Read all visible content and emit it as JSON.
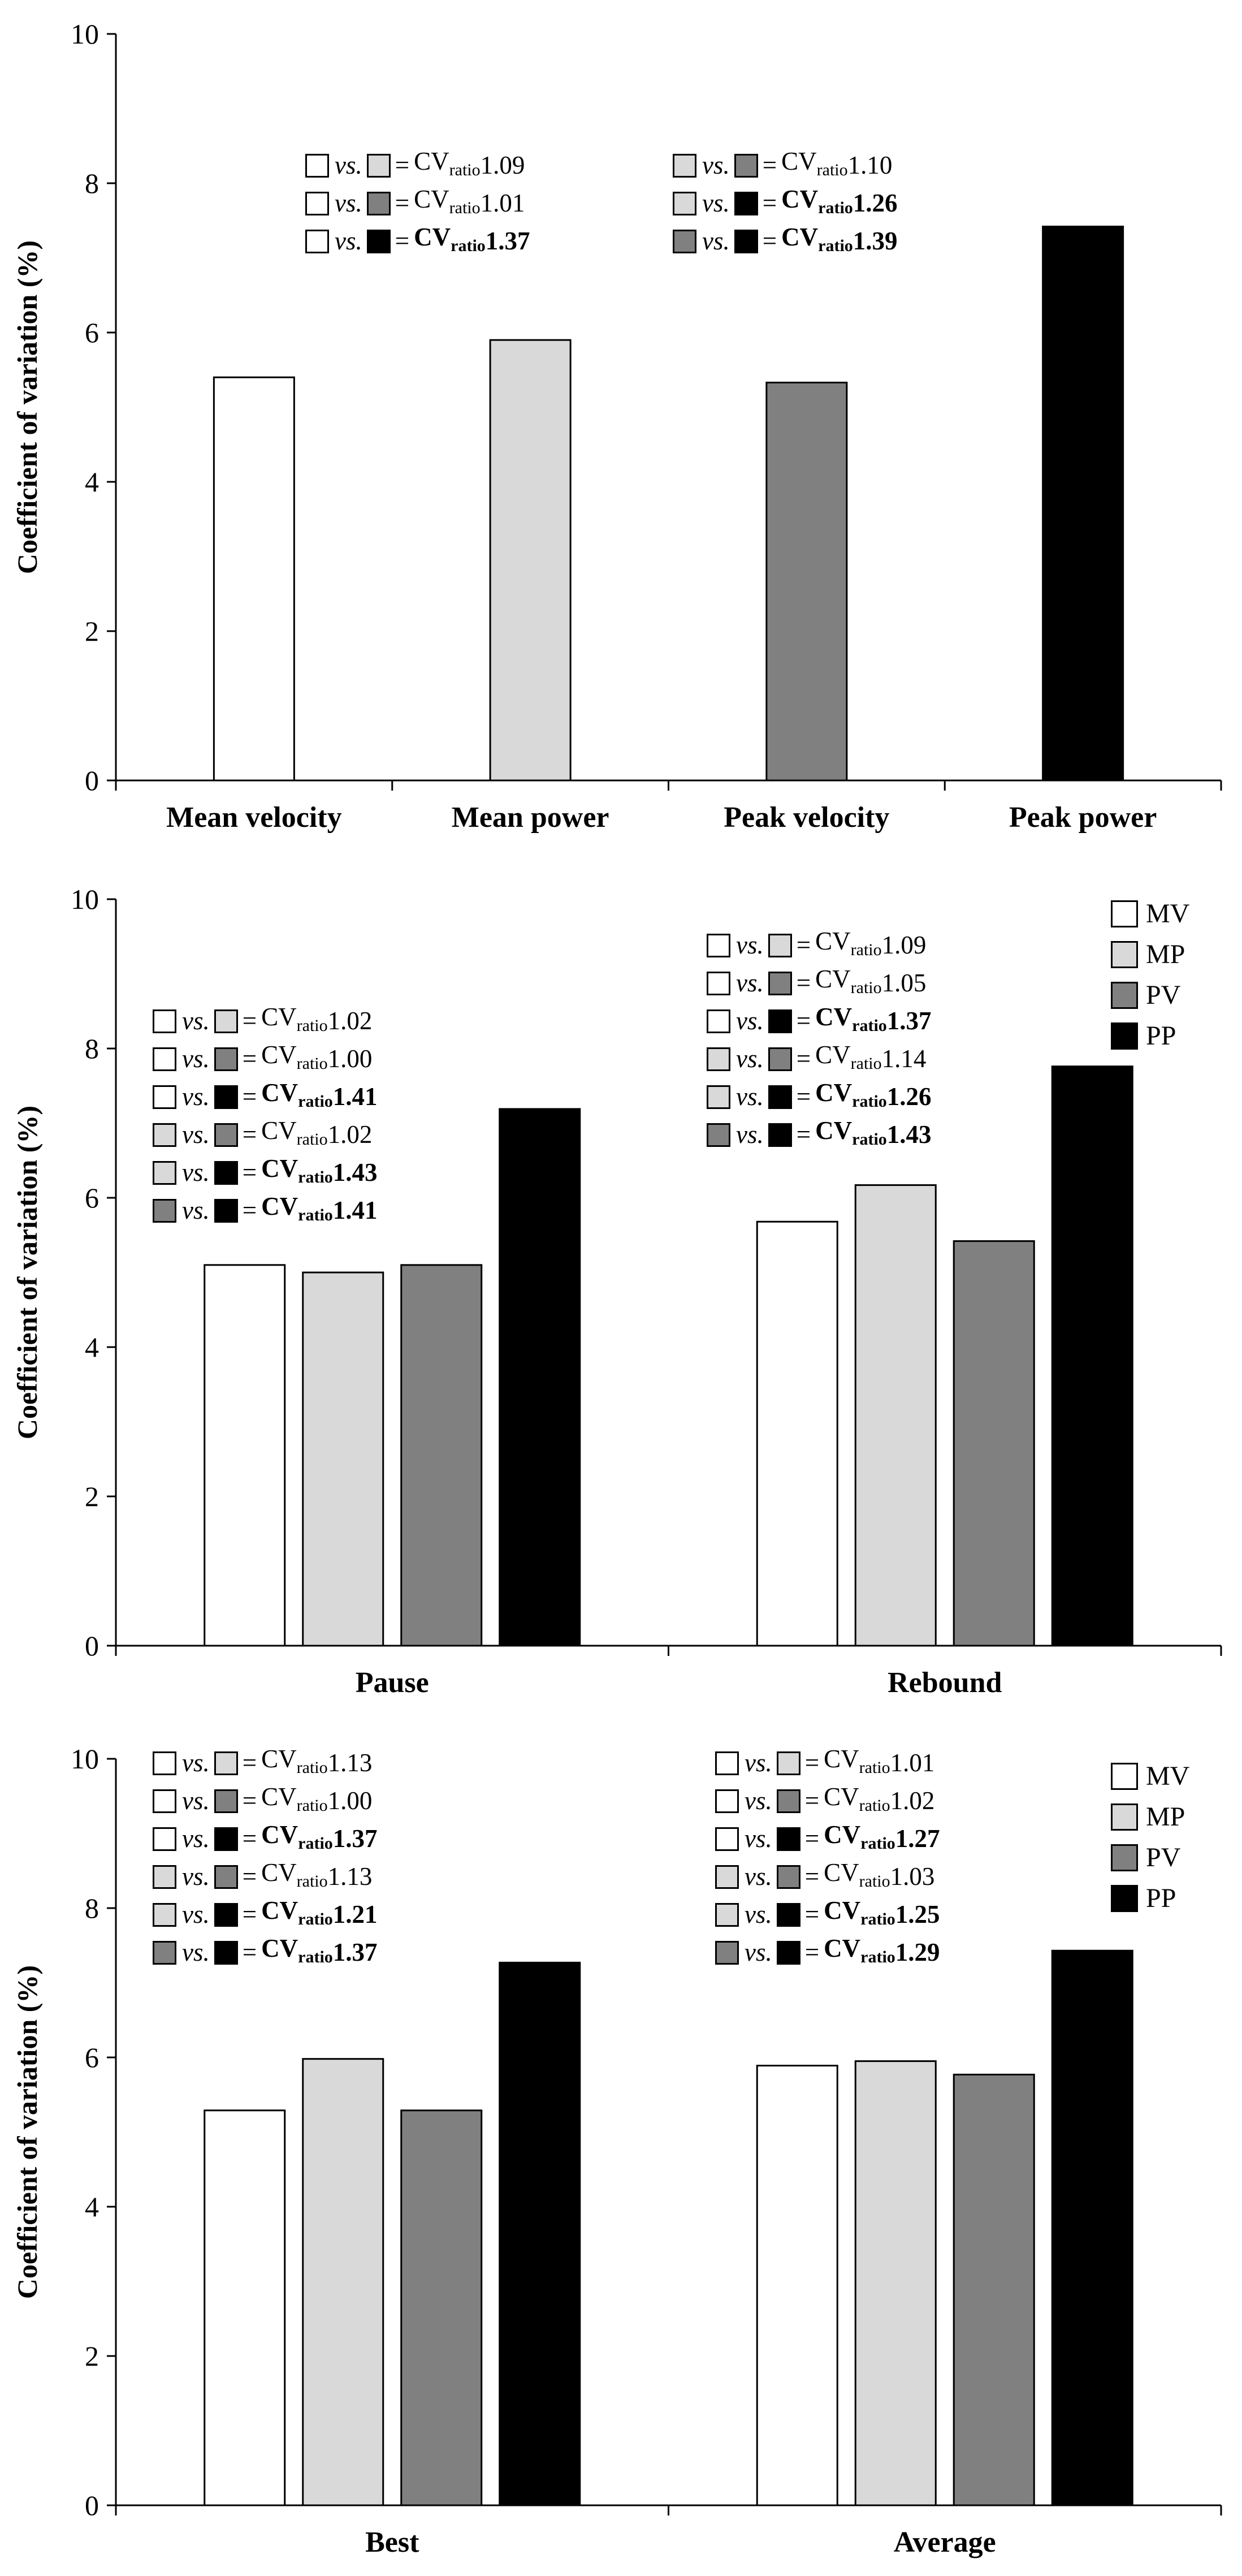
{
  "axis": {
    "ylabel": "Coefficient of variation (%)",
    "yticks": [
      "0",
      "2",
      "4",
      "6",
      "8",
      "10"
    ]
  },
  "colors": {
    "MV": "#ffffff",
    "MP": "#d9d9d9",
    "PV": "#808080",
    "PP": "#000000"
  },
  "text": {
    "vs": "vs.",
    "eq": "=",
    "cv": "CV",
    "ratio": "ratio"
  },
  "legend": [
    {
      "key": "MV",
      "label": "MV"
    },
    {
      "key": "MP",
      "label": "MP"
    },
    {
      "key": "PV",
      "label": "PV"
    },
    {
      "key": "PP",
      "label": "PP"
    }
  ],
  "chart_data": [
    {
      "type": "bar",
      "ylabel": "Coefficient of variation (%)",
      "ylim": [
        0,
        10
      ],
      "categories": [
        "Mean velocity",
        "Mean power",
        "Peak velocity",
        "Peak power"
      ],
      "series": [
        {
          "name": "MV",
          "values": [
            5.4,
            null,
            null,
            null
          ]
        },
        {
          "name": "MP",
          "values": [
            null,
            5.9,
            null,
            null
          ]
        },
        {
          "name": "PV",
          "values": [
            null,
            null,
            5.33,
            null
          ]
        },
        {
          "name": "PP",
          "values": [
            null,
            null,
            null,
            7.42
          ]
        }
      ],
      "annotations": [
        [
          {
            "a": "MV",
            "b": "MP",
            "value": "1.09",
            "bold": false
          },
          {
            "a": "MV",
            "b": "PV",
            "value": "1.01",
            "bold": false
          },
          {
            "a": "MV",
            "b": "PP",
            "value": "1.37",
            "bold": true
          }
        ],
        [
          {
            "a": "MP",
            "b": "PV",
            "value": "1.10",
            "bold": false
          },
          {
            "a": "MP",
            "b": "PP",
            "value": "1.26",
            "bold": true
          },
          {
            "a": "PV",
            "b": "PP",
            "value": "1.39",
            "bold": true
          }
        ]
      ]
    },
    {
      "type": "bar",
      "ylabel": "Coefficient of variation (%)",
      "ylim": [
        0,
        10
      ],
      "categories": [
        "Pause",
        "Rebound"
      ],
      "series": [
        {
          "name": "MV",
          "values": [
            5.1,
            5.68
          ]
        },
        {
          "name": "MP",
          "values": [
            5.0,
            6.17
          ]
        },
        {
          "name": "PV",
          "values": [
            5.1,
            5.42
          ]
        },
        {
          "name": "PP",
          "values": [
            7.19,
            7.76
          ]
        }
      ],
      "legend": "top-right",
      "annotations": [
        [
          {
            "a": "MV",
            "b": "MP",
            "value": "1.02",
            "bold": false
          },
          {
            "a": "MV",
            "b": "PV",
            "value": "1.00",
            "bold": false
          },
          {
            "a": "MV",
            "b": "PP",
            "value": "1.41",
            "bold": true
          },
          {
            "a": "MP",
            "b": "PV",
            "value": "1.02",
            "bold": false
          },
          {
            "a": "MP",
            "b": "PP",
            "value": "1.43",
            "bold": true
          },
          {
            "a": "PV",
            "b": "PP",
            "value": "1.41",
            "bold": true
          }
        ],
        [
          {
            "a": "MV",
            "b": "MP",
            "value": "1.09",
            "bold": false
          },
          {
            "a": "MV",
            "b": "PV",
            "value": "1.05",
            "bold": false
          },
          {
            "a": "MV",
            "b": "PP",
            "value": "1.37",
            "bold": true
          },
          {
            "a": "MP",
            "b": "PV",
            "value": "1.14",
            "bold": false
          },
          {
            "a": "MP",
            "b": "PP",
            "value": "1.26",
            "bold": true
          },
          {
            "a": "PV",
            "b": "PP",
            "value": "1.43",
            "bold": true
          }
        ]
      ]
    },
    {
      "type": "bar",
      "ylabel": "Coefficient of variation (%)",
      "ylim": [
        0,
        10
      ],
      "categories": [
        "Best",
        "Average"
      ],
      "series": [
        {
          "name": "MV",
          "values": [
            5.29,
            5.89
          ]
        },
        {
          "name": "MP",
          "values": [
            5.98,
            5.95
          ]
        },
        {
          "name": "PV",
          "values": [
            5.29,
            5.77
          ]
        },
        {
          "name": "PP",
          "values": [
            7.27,
            7.43
          ]
        }
      ],
      "legend": "top-right",
      "annotations": [
        [
          {
            "a": "MV",
            "b": "MP",
            "value": "1.13",
            "bold": false
          },
          {
            "a": "MV",
            "b": "PV",
            "value": "1.00",
            "bold": false
          },
          {
            "a": "MV",
            "b": "PP",
            "value": "1.37",
            "bold": true
          },
          {
            "a": "MP",
            "b": "PV",
            "value": "1.13",
            "bold": false
          },
          {
            "a": "MP",
            "b": "PP",
            "value": "1.21",
            "bold": true
          },
          {
            "a": "PV",
            "b": "PP",
            "value": "1.37",
            "bold": true
          }
        ],
        [
          {
            "a": "MV",
            "b": "MP",
            "value": "1.01",
            "bold": false
          },
          {
            "a": "MV",
            "b": "PV",
            "value": "1.02",
            "bold": false
          },
          {
            "a": "MV",
            "b": "PP",
            "value": "1.27",
            "bold": true
          },
          {
            "a": "MP",
            "b": "PV",
            "value": "1.03",
            "bold": false
          },
          {
            "a": "MP",
            "b": "PP",
            "value": "1.25",
            "bold": true
          },
          {
            "a": "PV",
            "b": "PP",
            "value": "1.29",
            "bold": true
          }
        ]
      ]
    }
  ]
}
